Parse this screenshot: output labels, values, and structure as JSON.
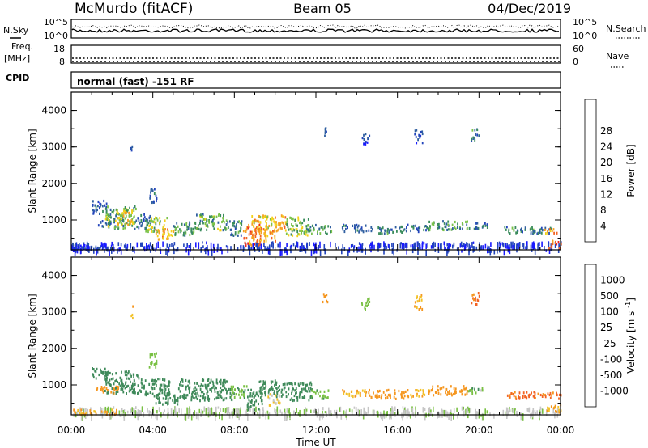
{
  "header": {
    "station": "McMurdo (fitACF)",
    "beam": "Beam 05",
    "date": "04/Dec/2019"
  },
  "strips": {
    "nsky_label": "N.Sky",
    "nsky_ticks": [
      "10^5",
      "10^0"
    ],
    "nsearch_label": "N.Search",
    "nsearch_ticks": [
      "10^5",
      "10^0"
    ],
    "freq_label": "Freq.",
    "freq_unit": "[MHz]",
    "freq_ticks": [
      "18",
      "8"
    ],
    "nave_label": "Nave",
    "nave_ticks": [
      "60",
      "0"
    ],
    "cpid_label": "CPID",
    "cpid_value": "normal (fast) -151 RF"
  },
  "chart_data": [
    {
      "type": "heatmap",
      "name": "power",
      "ylabel": "Slant Range [km]",
      "xlabel": "",
      "ylim": [
        180,
        4500
      ],
      "yticks": [
        "1000",
        "2000",
        "3000",
        "4000"
      ],
      "xlim_hours": [
        0,
        24
      ],
      "colorbar": {
        "label": "Power [dB]",
        "range": [
          0,
          32
        ],
        "ticks": [
          "4",
          "8",
          "12",
          "16",
          "20",
          "24",
          "28"
        ],
        "colors": [
          "#1a1aff",
          "#2244bb",
          "#2f5fa0",
          "#3a8c5c",
          "#7ac24a",
          "#f2d21a",
          "#f5a021",
          "#f26322",
          "#ee2222"
        ]
      },
      "cells": [
        [
          0,
          1,
          200,
          400,
          4
        ],
        [
          0.2,
          2.2,
          230,
          300,
          7
        ],
        [
          1,
          1.7,
          1200,
          1600,
          8
        ],
        [
          1.2,
          2.2,
          820,
          1000,
          10
        ],
        [
          1.6,
          3.2,
          780,
          1400,
          16
        ],
        [
          2.2,
          3.0,
          900,
          1300,
          22
        ],
        [
          3.2,
          3.9,
          800,
          1200,
          10
        ],
        [
          3.6,
          4.7,
          700,
          1100,
          18
        ],
        [
          4.1,
          5.0,
          500,
          800,
          24
        ],
        [
          5.0,
          6.0,
          600,
          1000,
          14
        ],
        [
          6.0,
          7.6,
          750,
          1200,
          16
        ],
        [
          7.6,
          8.4,
          600,
          1000,
          12
        ],
        [
          8.4,
          9.3,
          330,
          900,
          28
        ],
        [
          8.8,
          10.6,
          700,
          1150,
          24
        ],
        [
          9.2,
          10.0,
          450,
          800,
          26
        ],
        [
          10.5,
          11.6,
          600,
          1100,
          18
        ],
        [
          11.5,
          12.8,
          650,
          900,
          14
        ],
        [
          13.2,
          14.6,
          700,
          900,
          8
        ],
        [
          14.6,
          16.2,
          650,
          850,
          12
        ],
        [
          16.2,
          17.5,
          700,
          900,
          10
        ],
        [
          17.5,
          19.4,
          750,
          1000,
          14
        ],
        [
          19.4,
          20.4,
          780,
          950,
          10
        ],
        [
          21.2,
          23.6,
          650,
          850,
          12
        ],
        [
          23.2,
          24,
          650,
          800,
          26
        ],
        [
          23.4,
          24,
          250,
          500,
          30
        ],
        [
          2.9,
          3.0,
          2850,
          3200,
          8
        ],
        [
          12.3,
          12.6,
          3300,
          3550,
          8
        ],
        [
          16.8,
          17.2,
          3100,
          3500,
          8
        ],
        [
          19.6,
          20.0,
          3200,
          3550,
          12
        ],
        [
          3.8,
          4.2,
          1500,
          1900,
          8
        ],
        [
          14.2,
          14.6,
          3100,
          3400,
          6
        ]
      ]
    },
    {
      "type": "heatmap",
      "name": "velocity",
      "ylabel": "Slant Range [km]",
      "xlabel": "Time UT",
      "ylim": [
        180,
        4500
      ],
      "yticks": [
        "1000",
        "2000",
        "3000",
        "4000"
      ],
      "xlim_hours": [
        0,
        24
      ],
      "xticks": [
        "00:00",
        "04:00",
        "08:00",
        "12:00",
        "16:00",
        "20:00",
        "00:00"
      ],
      "colorbar": {
        "label": "Velocity",
        "unit": "[m s",
        "unit_sup": "-1",
        "unit_end": "]",
        "ticks": [
          "1000",
          "500",
          "100",
          "25",
          "-25",
          "-100",
          "-500",
          "-1000"
        ],
        "colors": [
          "#2233bb",
          "#2e5fa3",
          "#3f8a5a",
          "#79c043",
          "#c6c6c6",
          "#f2c229",
          "#f5961f",
          "#f26322",
          "#ee1f1f"
        ]
      },
      "cells": [
        [
          0,
          2.2,
          200,
          350,
          -100
        ],
        [
          1,
          1.7,
          1200,
          1500,
          300
        ],
        [
          1.2,
          2.4,
          800,
          1000,
          -300
        ],
        [
          1.6,
          3.4,
          800,
          1400,
          300
        ],
        [
          3.4,
          4.8,
          700,
          1200,
          300
        ],
        [
          4.0,
          5.2,
          500,
          800,
          300
        ],
        [
          5.2,
          7.8,
          600,
          1200,
          300
        ],
        [
          7.8,
          8.6,
          600,
          1000,
          80
        ],
        [
          8.6,
          9.4,
          350,
          900,
          300
        ],
        [
          9.2,
          10.5,
          700,
          1150,
          300
        ],
        [
          9.6,
          10.2,
          450,
          800,
          -30
        ],
        [
          10.5,
          11.8,
          600,
          1100,
          300
        ],
        [
          11.7,
          12.6,
          650,
          900,
          60
        ],
        [
          13.2,
          14.6,
          700,
          900,
          -100
        ],
        [
          14.6,
          16.4,
          650,
          900,
          -300
        ],
        [
          16.4,
          17.6,
          700,
          900,
          -100
        ],
        [
          17.6,
          19.4,
          750,
          1000,
          -300
        ],
        [
          19.4,
          20.3,
          800,
          950,
          60
        ],
        [
          21.3,
          24,
          650,
          850,
          -700
        ],
        [
          23.3,
          24,
          250,
          500,
          -100
        ],
        [
          2.9,
          3.0,
          2850,
          3200,
          -100
        ],
        [
          12.3,
          12.6,
          3300,
          3550,
          -300
        ],
        [
          16.8,
          17.2,
          3100,
          3500,
          -100
        ],
        [
          19.6,
          20.0,
          3200,
          3550,
          -700
        ],
        [
          3.8,
          4.2,
          1500,
          1900,
          60
        ],
        [
          14.2,
          14.6,
          3100,
          3400,
          60
        ]
      ]
    }
  ]
}
